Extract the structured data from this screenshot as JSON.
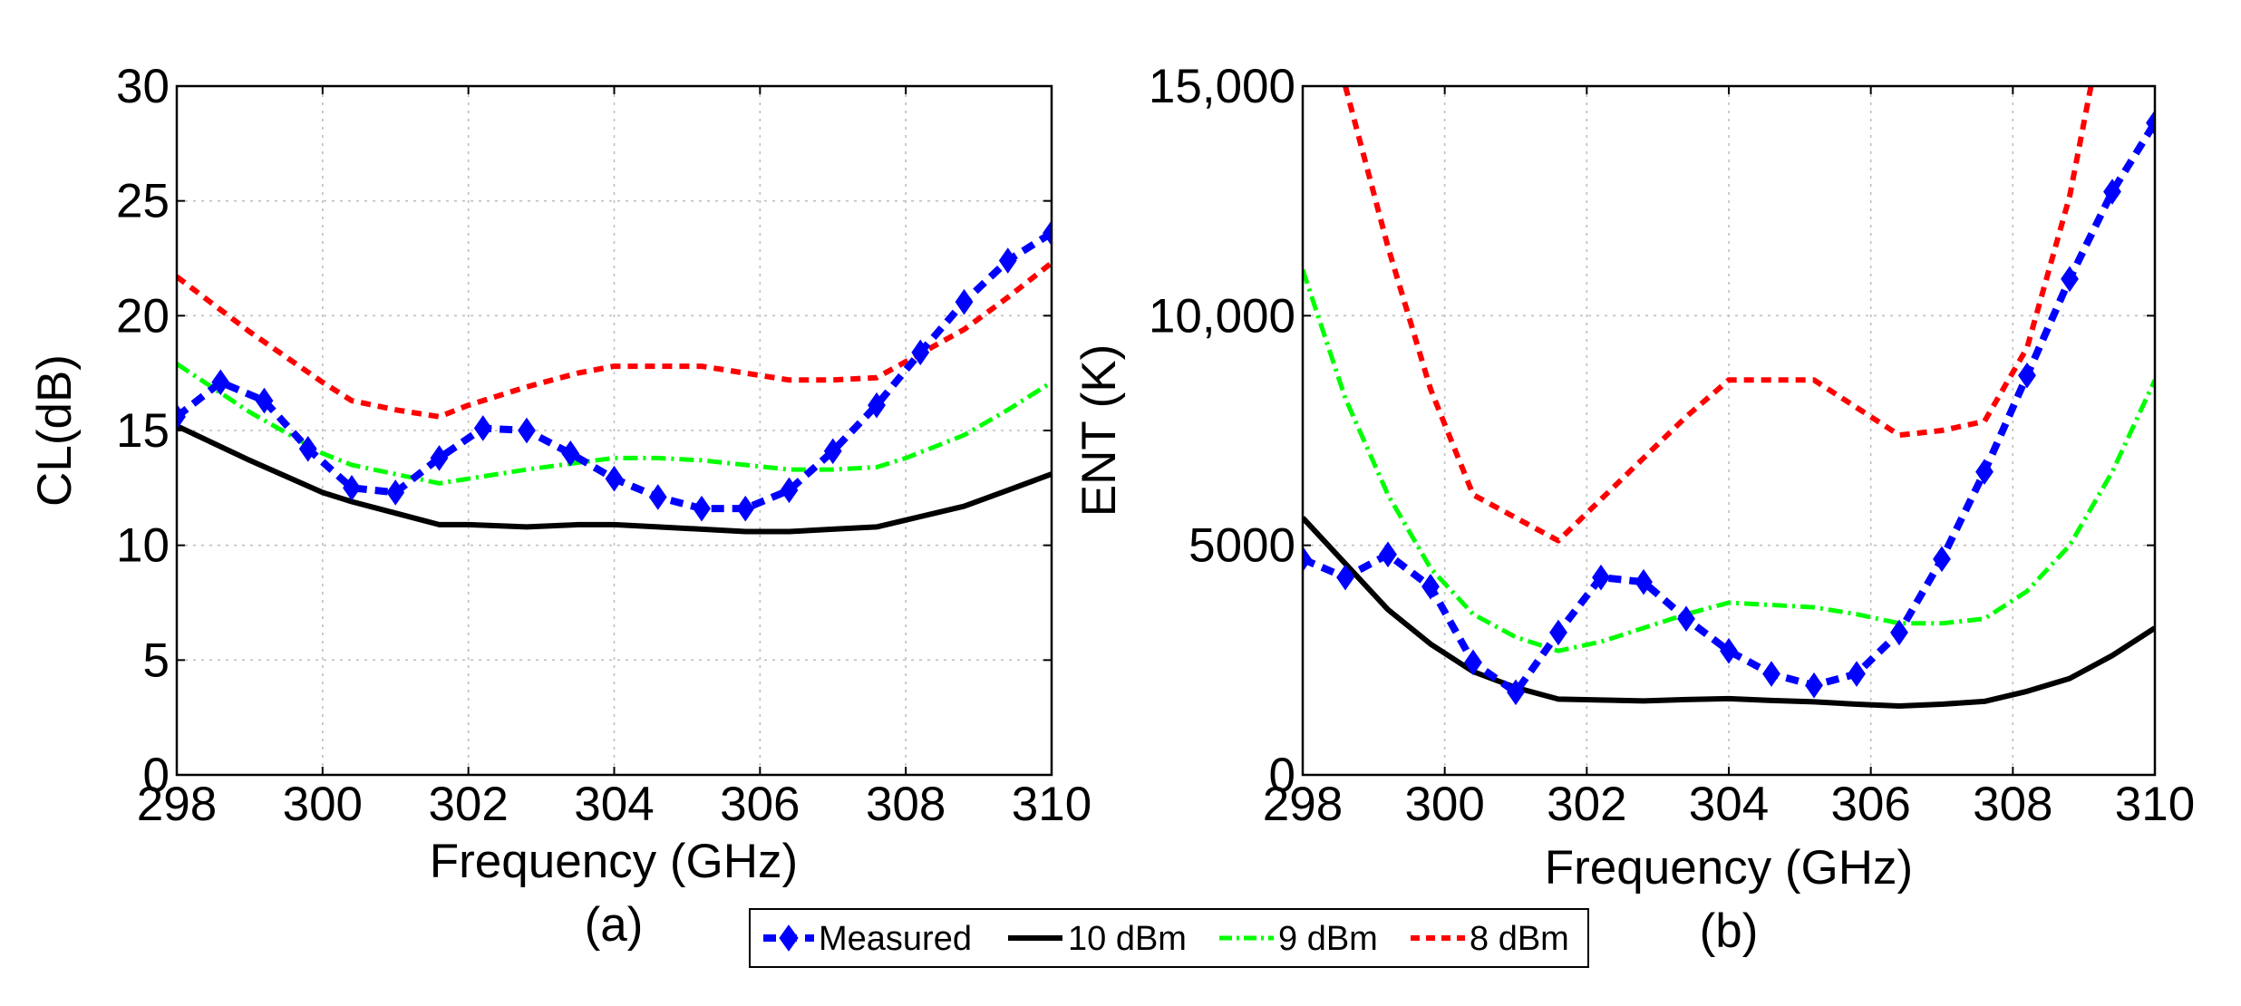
{
  "legend": {
    "items": [
      {
        "label": "Measured",
        "color": "#0000ff",
        "style": "dashed-diamond"
      },
      {
        "label": "10 dBm",
        "color": "#000000",
        "style": "solid"
      },
      {
        "label": "9 dBm",
        "color": "#00ff00",
        "style": "dash-dot"
      },
      {
        "label": "8 dBm",
        "color": "#ff0000",
        "style": "dashed"
      }
    ]
  },
  "chart_data": [
    {
      "type": "line",
      "panel_label": "(a)",
      "xlabel": "Frequency (GHz)",
      "ylabel": "CL(dB)",
      "xlim": [
        298,
        310
      ],
      "ylim": [
        0,
        30
      ],
      "xticks": [
        298,
        300,
        302,
        304,
        306,
        308,
        310
      ],
      "xtick_labels": [
        "298",
        "300",
        "302",
        "304",
        "306",
        "308",
        "310"
      ],
      "yticks": [
        0,
        5,
        10,
        15,
        20,
        25,
        30
      ],
      "ytick_labels": [
        "0",
        "5",
        "10",
        "15",
        "20",
        "25",
        "30"
      ],
      "grid": true,
      "series": [
        {
          "name": "10 dBm",
          "color": "#000000",
          "x": [
            298,
            299,
            300,
            300.4,
            301,
            301.6,
            302,
            302.8,
            303.5,
            304,
            304.6,
            305.2,
            305.8,
            306.4,
            307,
            307.6,
            308,
            308.8,
            309.4,
            310
          ],
          "y": [
            15.2,
            13.7,
            12.3,
            11.9,
            11.4,
            10.9,
            10.9,
            10.8,
            10.9,
            10.9,
            10.8,
            10.7,
            10.6,
            10.6,
            10.7,
            10.8,
            11.1,
            11.7,
            12.4,
            13.1
          ]
        },
        {
          "name": "9 dBm",
          "color": "#00ff00",
          "x": [
            298,
            299,
            300,
            300.4,
            301,
            301.6,
            302,
            302.8,
            303.5,
            304,
            304.6,
            305.2,
            305.8,
            306.4,
            307,
            307.6,
            308,
            308.8,
            309.4,
            310
          ],
          "y": [
            17.9,
            15.8,
            14.0,
            13.5,
            13.1,
            12.7,
            12.9,
            13.3,
            13.6,
            13.8,
            13.8,
            13.7,
            13.5,
            13.3,
            13.3,
            13.4,
            13.8,
            14.8,
            15.9,
            17.1
          ]
        },
        {
          "name": "8 dBm",
          "color": "#ff0000",
          "x": [
            298,
            299,
            300,
            300.4,
            301,
            301.6,
            302,
            302.8,
            303.5,
            304,
            304.6,
            305.2,
            305.8,
            306.4,
            307,
            307.6,
            308,
            308.8,
            309.4,
            310
          ],
          "y": [
            21.7,
            19.3,
            17.1,
            16.3,
            15.9,
            15.6,
            16.1,
            16.9,
            17.5,
            17.8,
            17.8,
            17.8,
            17.5,
            17.2,
            17.2,
            17.3,
            18.0,
            19.4,
            20.8,
            22.3
          ]
        },
        {
          "name": "Measured",
          "color": "#0000ff",
          "x": [
            298,
            298.6,
            299.2,
            299.8,
            300.4,
            301,
            301.6,
            302.2,
            302.8,
            303.4,
            304,
            304.6,
            305.2,
            305.8,
            306.4,
            307,
            307.6,
            308.2,
            308.8,
            309.4,
            310
          ],
          "y": [
            15.6,
            17.1,
            16.3,
            14.2,
            12.5,
            12.3,
            13.8,
            15.1,
            15.0,
            14.0,
            12.9,
            12.1,
            11.6,
            11.6,
            12.4,
            14.1,
            16.1,
            18.4,
            20.6,
            22.4,
            23.6
          ]
        }
      ]
    },
    {
      "type": "line",
      "panel_label": "(b)",
      "xlabel": "Frequency (GHz)",
      "ylabel": "ENT (K)",
      "xlim": [
        298,
        310
      ],
      "ylim": [
        0,
        15000
      ],
      "xticks": [
        298,
        300,
        302,
        304,
        306,
        308,
        310
      ],
      "xtick_labels": [
        "298",
        "300",
        "302",
        "304",
        "306",
        "308",
        "310"
      ],
      "yticks": [
        0,
        5000,
        10000,
        15000
      ],
      "ytick_labels": [
        "0",
        "5000",
        "10,000",
        "15,000"
      ],
      "grid": true,
      "series": [
        {
          "name": "10 dBm",
          "color": "#000000",
          "x": [
            298,
            298.6,
            299.2,
            299.8,
            300.4,
            301,
            301.6,
            302.2,
            302.8,
            303.4,
            304,
            304.6,
            305.2,
            305.8,
            306.4,
            307,
            307.6,
            308.2,
            308.8,
            309.4,
            310
          ],
          "y": [
            5600,
            4600,
            3600,
            2850,
            2250,
            1900,
            1650,
            1630,
            1610,
            1640,
            1660,
            1620,
            1590,
            1540,
            1500,
            1540,
            1600,
            1820,
            2100,
            2600,
            3200
          ]
        },
        {
          "name": "9 dBm",
          "color": "#00ff00",
          "x": [
            298,
            298.6,
            299.2,
            299.8,
            300.4,
            301,
            301.6,
            302.2,
            302.8,
            303.4,
            304,
            304.6,
            305.2,
            305.8,
            306.4,
            307,
            307.6,
            308.2,
            308.8,
            309.4,
            310
          ],
          "y": [
            11000,
            8200,
            6100,
            4500,
            3500,
            3000,
            2700,
            2900,
            3200,
            3500,
            3750,
            3700,
            3650,
            3500,
            3300,
            3300,
            3400,
            4000,
            5000,
            6600,
            8600
          ]
        },
        {
          "name": "8 dBm",
          "color": "#ff0000",
          "x": [
            298.6,
            299.2,
            299.8,
            300.4,
            301,
            301.6,
            302.2,
            302.8,
            303.4,
            304,
            304.6,
            305.2,
            305.8,
            306.4,
            307,
            307.6,
            308.2,
            308.8,
            309.1
          ],
          "y": [
            15000,
            11500,
            8400,
            6100,
            5600,
            5100,
            6000,
            6900,
            7800,
            8600,
            8600,
            8600,
            8000,
            7400,
            7500,
            7700,
            9300,
            12600,
            15000
          ]
        },
        {
          "name": "Measured",
          "color": "#0000ff",
          "x": [
            298,
            298.6,
            299.2,
            299.8,
            300.4,
            301,
            301.6,
            302.2,
            302.8,
            303.4,
            304,
            304.6,
            305.2,
            305.8,
            306.4,
            307,
            307.6,
            308.2,
            308.8,
            309.4,
            310
          ],
          "y": [
            4700,
            4300,
            4800,
            4100,
            2450,
            1800,
            3100,
            4300,
            4200,
            3400,
            2700,
            2200,
            1950,
            2200,
            3100,
            4700,
            6600,
            8700,
            10800,
            12700,
            14200
          ]
        }
      ]
    }
  ]
}
